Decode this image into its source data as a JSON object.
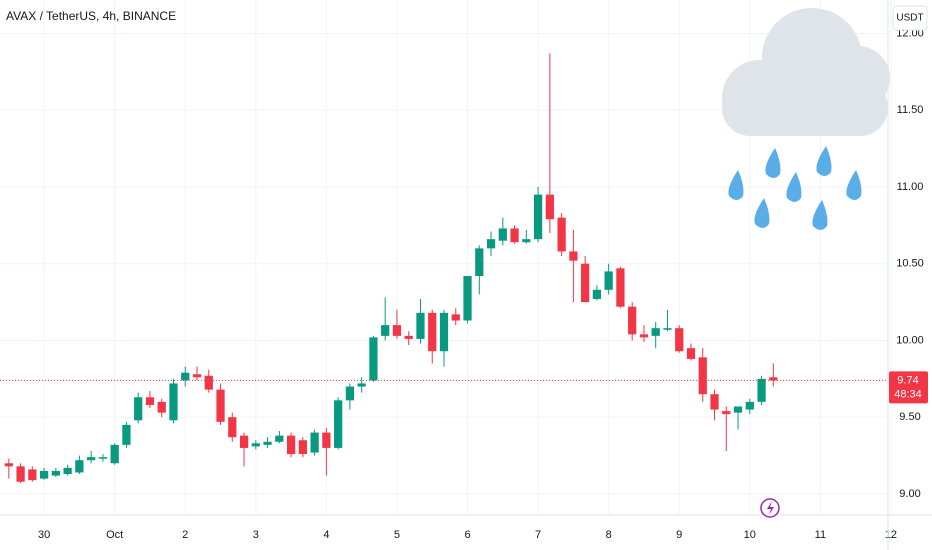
{
  "chart_data": {
    "type": "candlestick",
    "title": "AVAX / TetherUS, 4h, BINANCE",
    "currency": "USDT",
    "up_color": "#089981",
    "down_color": "#f23645",
    "grid": true,
    "open": [
      9.2,
      9.18,
      9.16,
      9.1,
      9.12,
      9.13,
      9.14,
      9.22,
      9.23,
      9.2,
      9.32,
      9.48,
      9.63,
      9.6,
      9.48,
      9.74,
      9.78,
      9.77,
      9.68,
      9.5,
      9.38,
      9.31,
      9.32,
      9.34,
      9.38,
      9.35,
      9.27,
      9.4,
      9.3,
      9.61,
      9.7,
      9.74,
      10.03,
      10.1,
      10.03,
      10.01,
      10.18,
      9.93,
      10.17,
      10.13,
      10.42,
      10.6,
      10.65,
      10.73,
      10.64,
      10.66,
      10.95,
      10.8,
      10.58,
      10.5,
      10.27,
      10.33,
      10.47,
      10.22,
      10.04,
      10.03,
      10.07,
      10.08,
      9.95,
      9.89,
      9.65,
      9.54,
      9.53,
      9.55,
      9.6,
      9.76
    ],
    "high": [
      9.23,
      9.2,
      9.18,
      9.17,
      9.17,
      9.19,
      9.25,
      9.28,
      9.26,
      9.33,
      9.47,
      9.66,
      9.67,
      9.62,
      9.75,
      9.83,
      9.83,
      9.81,
      9.72,
      9.53,
      9.4,
      9.35,
      9.37,
      9.41,
      9.4,
      9.37,
      9.42,
      9.43,
      9.63,
      9.72,
      9.76,
      10.03,
      10.28,
      10.2,
      10.06,
      10.27,
      10.2,
      10.2,
      10.21,
      10.42,
      10.62,
      10.71,
      10.8,
      10.75,
      10.72,
      11.0,
      11.87,
      10.83,
      10.72,
      10.55,
      10.36,
      10.5,
      10.48,
      10.25,
      10.1,
      10.12,
      10.2,
      10.1,
      9.98,
      9.95,
      9.68,
      9.57,
      9.57,
      9.62,
      9.77,
      9.85
    ],
    "low": [
      9.1,
      9.07,
      9.08,
      9.09,
      9.11,
      9.12,
      9.13,
      9.2,
      9.21,
      9.19,
      9.3,
      9.46,
      9.56,
      9.5,
      9.46,
      9.7,
      9.74,
      9.66,
      9.45,
      9.34,
      9.18,
      9.29,
      9.3,
      9.33,
      9.24,
      9.24,
      9.25,
      9.12,
      9.29,
      9.55,
      9.66,
      9.73,
      10.0,
      10.01,
      9.97,
      9.98,
      9.85,
      9.83,
      10.1,
      10.11,
      10.3,
      10.55,
      10.62,
      10.63,
      10.63,
      10.64,
      10.7,
      10.55,
      10.25,
      10.25,
      10.26,
      10.3,
      10.21,
      10.0,
      9.99,
      9.95,
      10.06,
      9.92,
      9.87,
      9.6,
      9.48,
      9.28,
      9.42,
      9.52,
      9.58,
      9.7
    ],
    "close": [
      9.18,
      9.08,
      9.09,
      9.15,
      9.15,
      9.17,
      9.22,
      9.24,
      9.24,
      9.32,
      9.45,
      9.63,
      9.58,
      9.53,
      9.72,
      9.79,
      9.76,
      9.68,
      9.47,
      9.37,
      9.3,
      9.33,
      9.34,
      9.38,
      9.26,
      9.26,
      9.4,
      9.3,
      9.61,
      9.7,
      9.72,
      10.02,
      10.1,
      10.03,
      10.01,
      10.18,
      9.93,
      10.18,
      10.13,
      10.42,
      10.6,
      10.66,
      10.73,
      10.64,
      10.66,
      10.95,
      10.79,
      10.58,
      10.52,
      10.25,
      10.33,
      10.45,
      10.22,
      10.04,
      10.02,
      10.08,
      10.08,
      9.93,
      9.88,
      9.65,
      9.55,
      9.52,
      9.57,
      9.6,
      9.75,
      9.74
    ],
    "xlim": [
      -0.75,
      74.75
    ],
    "xticks": [
      {
        "value": 3,
        "label": "30"
      },
      {
        "value": 9,
        "label": "Oct"
      },
      {
        "value": 15,
        "label": "2"
      },
      {
        "value": 21,
        "label": "3"
      },
      {
        "value": 27,
        "label": "4"
      },
      {
        "value": 33,
        "label": "5"
      },
      {
        "value": 39,
        "label": "6"
      },
      {
        "value": 45,
        "label": "7"
      },
      {
        "value": 51,
        "label": "8"
      },
      {
        "value": 57,
        "label": "9"
      },
      {
        "value": 63,
        "label": "10"
      },
      {
        "value": 69,
        "label": "11"
      },
      {
        "value": 75,
        "label": "12"
      }
    ],
    "ylim": [
      8.863,
      12.218
    ],
    "yticks": [
      {
        "value": 9,
        "label": "9.00"
      },
      {
        "value": 9.5,
        "label": "9.50"
      },
      {
        "value": 10,
        "label": "10.00"
      },
      {
        "value": 10.5,
        "label": "10.50"
      },
      {
        "value": 11,
        "label": "11.00"
      },
      {
        "value": 11.5,
        "label": "11.50"
      },
      {
        "value": 12,
        "label": "12.00"
      }
    ],
    "last_price": 9.74,
    "countdown": "48:34"
  }
}
